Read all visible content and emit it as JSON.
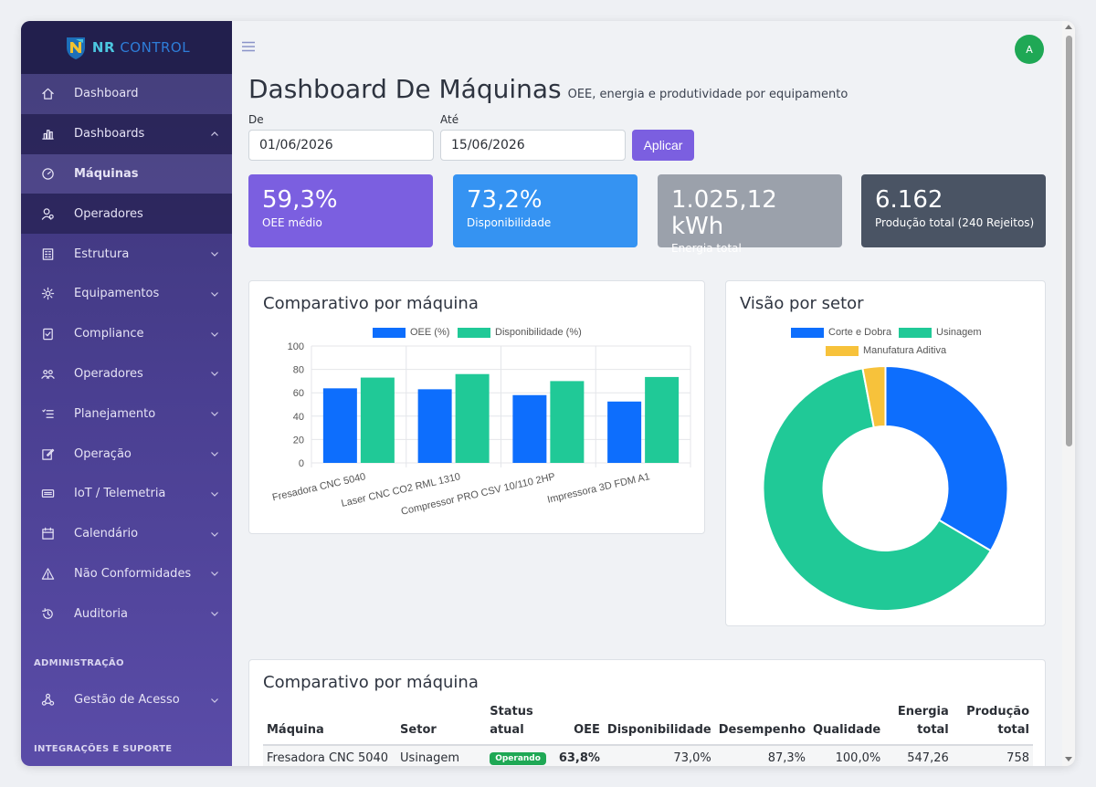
{
  "brand": {
    "name_a": "NR",
    "name_b": "CONTROL"
  },
  "sidebar": {
    "items": [
      {
        "label": "Dashboard",
        "icon": "home-icon"
      },
      {
        "label": "Dashboards",
        "icon": "bar-chart-icon"
      },
      {
        "label": "Máquinas",
        "icon": "gauge-icon"
      },
      {
        "label": "Operadores",
        "icon": "user-icon"
      },
      {
        "label": "Estrutura",
        "icon": "building-icon"
      },
      {
        "label": "Equipamentos",
        "icon": "gear-icon"
      },
      {
        "label": "Compliance",
        "icon": "clipboard-check-icon"
      },
      {
        "label": "Operadores",
        "icon": "users-icon"
      },
      {
        "label": "Planejamento",
        "icon": "list-icon"
      },
      {
        "label": "Operação",
        "icon": "edit-icon"
      },
      {
        "label": "IoT / Telemetria",
        "icon": "device-icon"
      },
      {
        "label": "Calendário",
        "icon": "calendar-icon"
      },
      {
        "label": "Não Conformidades",
        "icon": "warning-icon"
      },
      {
        "label": "Auditoria",
        "icon": "history-icon"
      }
    ],
    "section_admin": "ADMINISTRAÇÃO",
    "admin_item": {
      "label": "Gestão de Acesso",
      "icon": "network-icon"
    },
    "section_integrations": "INTEGRAÇÕES E SUPORTE"
  },
  "header": {
    "avatar_initial": "A"
  },
  "page": {
    "title": "Dashboard De Máquinas",
    "subtitle": "OEE, energia e produtividade por equipamento"
  },
  "filters": {
    "from_label": "De",
    "from_value": "01/06/2026",
    "to_label": "Até",
    "to_value": "15/06/2026",
    "apply_label": "Aplicar"
  },
  "kpis": [
    {
      "value": "59,3%",
      "label": "OEE médio",
      "color": "#7b5fe0"
    },
    {
      "value": "73,2%",
      "label": "Disponibilidade",
      "color": "#3593f2"
    },
    {
      "value": "1.025,12 kWh",
      "label": "Energia total",
      "color": "#9ba1ab"
    },
    {
      "value": "6.162",
      "label": "Produção total (240 Rejeitos)",
      "color": "#4a5464"
    }
  ],
  "bar_card": {
    "title": "Comparativo por máquina"
  },
  "donut_card": {
    "title": "Visão por setor"
  },
  "table_card": {
    "title": "Comparativo por máquina"
  },
  "chart_data": [
    {
      "type": "bar",
      "categories": [
        "Fresadora CNC 5040",
        "Laser CNC CO2 RML 1310",
        "Compressor PRO CSV 10/110 2HP",
        "Impressora 3D FDM A1"
      ],
      "series": [
        {
          "name": "OEE (%)",
          "values": [
            63.8,
            63,
            58,
            52.5
          ],
          "color": "#0d6efd"
        },
        {
          "name": "Disponibilidade (%)",
          "values": [
            73,
            76,
            70,
            73.5
          ],
          "color": "#20c997"
        }
      ],
      "ylim": [
        0,
        100
      ],
      "yticks": [
        0,
        20,
        40,
        60,
        80,
        100
      ],
      "grid": true,
      "legend": "top"
    },
    {
      "type": "pie",
      "labels": [
        "Corte e Dobra",
        "Usinagem",
        "Manufatura Aditiva"
      ],
      "values": [
        33.5,
        63.5,
        3
      ],
      "colors": [
        "#0d6efd",
        "#20c997",
        "#f7c23b"
      ],
      "legend": "top"
    }
  ],
  "table": {
    "headers": [
      "Máquina",
      "Setor",
      "Status atual",
      "OEE",
      "Disponibilidade",
      "Desempenho",
      "Qualidade",
      "Energia total",
      "Produção total"
    ],
    "rows": [
      [
        "Fresadora CNC 5040",
        "Usinagem",
        "Operando",
        "63,8%",
        "73,0%",
        "87,3%",
        "100,0%",
        "547,26",
        "758"
      ]
    ]
  }
}
